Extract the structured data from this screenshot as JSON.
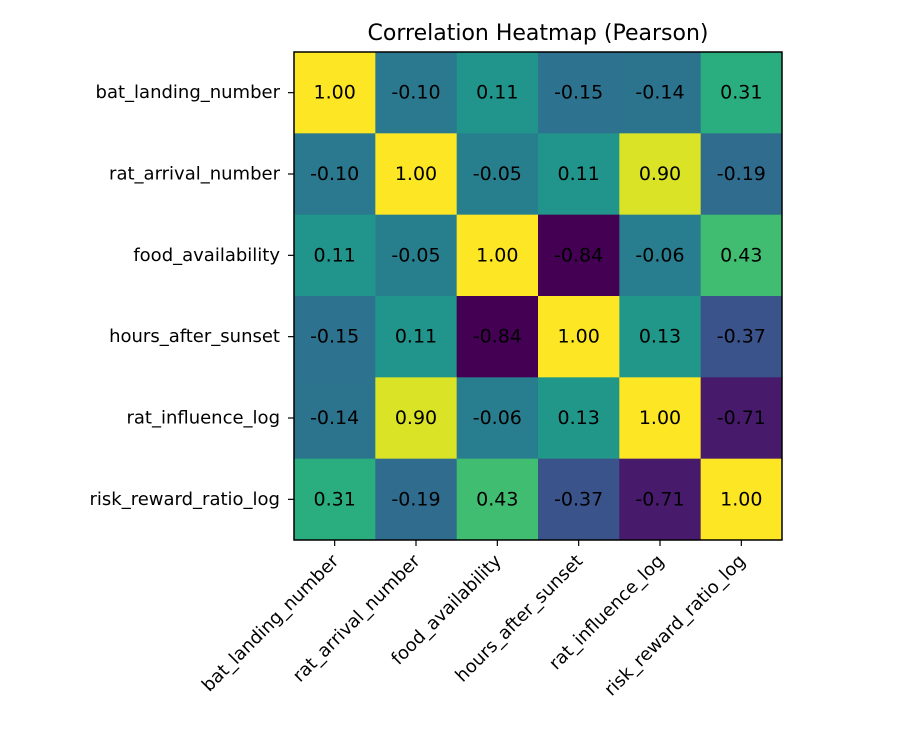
{
  "chart_data": {
    "type": "heatmap",
    "title": "Correlation Heatmap (Pearson)",
    "xlabel": "",
    "ylabel": "",
    "x_categories": [
      "bat_landing_number",
      "rat_arrival_number",
      "food_availability",
      "hours_after_sunset",
      "rat_influence_log",
      "risk_reward_ratio_log"
    ],
    "y_categories": [
      "bat_landing_number",
      "rat_arrival_number",
      "food_availability",
      "hours_after_sunset",
      "rat_influence_log",
      "risk_reward_ratio_log"
    ],
    "values": [
      [
        1.0,
        -0.1,
        0.11,
        -0.15,
        -0.14,
        0.31
      ],
      [
        -0.1,
        1.0,
        -0.05,
        0.11,
        0.9,
        -0.19
      ],
      [
        0.11,
        -0.05,
        1.0,
        -0.84,
        -0.06,
        0.43
      ],
      [
        -0.15,
        0.11,
        -0.84,
        1.0,
        0.13,
        -0.37
      ],
      [
        -0.14,
        0.9,
        -0.06,
        0.13,
        1.0,
        -0.71
      ],
      [
        0.31,
        -0.19,
        0.43,
        -0.37,
        -0.71,
        1.0
      ]
    ],
    "colormap": "viridis",
    "value_range": [
      -0.84,
      1.0
    ],
    "grid": false,
    "legend": "none"
  }
}
